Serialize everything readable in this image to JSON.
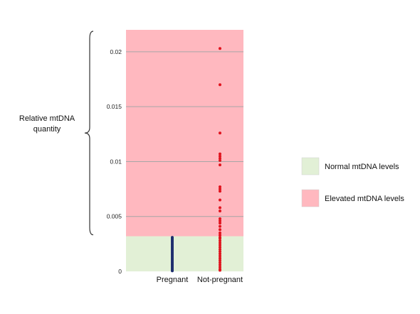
{
  "chart_data": {
    "type": "scatter",
    "ylim": [
      0,
      0.022
    ],
    "yticks": [
      0,
      0.005,
      0.01,
      0.015,
      0.02
    ],
    "ytick_labels": [
      "0",
      "0.005",
      "0.01",
      "0.015",
      "0.02"
    ],
    "categories": [
      "Pregnant",
      "Not-pregnant"
    ],
    "grid": true,
    "threshold": 0.0032,
    "bands": [
      {
        "name": "Normal mtDNA levels",
        "from": 0,
        "to": 0.0032,
        "color": "#e2f0d6"
      },
      {
        "name": "Elevated mtDNA levels",
        "from": 0.0032,
        "to": 0.022,
        "color": "#ffb8bf"
      }
    ],
    "series": [
      {
        "category": "Pregnant",
        "color": "#1f2f6e",
        "values": [
          0.0031,
          0.003,
          0.0029,
          0.0028,
          0.0027,
          0.0026,
          0.0025,
          0.0024,
          0.0023,
          0.0022,
          0.0021,
          0.002,
          0.0019,
          0.0018,
          0.0017,
          0.0016,
          0.0015,
          0.0014,
          0.0013,
          0.0012,
          0.0011,
          0.001,
          0.0009,
          0.0008,
          0.0007,
          0.0006,
          0.0005,
          0.0004,
          0.0003,
          0.0002,
          0.0001,
          5e-05
        ]
      },
      {
        "category": "Not-pregnant",
        "color": "#e0141e",
        "values": [
          0.0203,
          0.017,
          0.0126,
          0.0107,
          0.0105,
          0.0103,
          0.0101,
          0.0097,
          0.0077,
          0.0075,
          0.0073,
          0.0065,
          0.0058,
          0.0055,
          0.0048,
          0.0046,
          0.0044,
          0.0041,
          0.0038,
          0.0035,
          0.0033,
          0.0031,
          0.003,
          0.0028,
          0.0026,
          0.0024,
          0.0022,
          0.002,
          0.0018,
          0.0016,
          0.0014,
          0.0012,
          0.001,
          0.0008,
          0.0006,
          0.0004,
          0.0002,
          0.0001
        ]
      }
    ],
    "y_annotation": "Relative mtDNA\nquantity",
    "legend": {
      "placement": "right",
      "items": [
        {
          "label": "Normal mtDNA levels",
          "color": "#e2f0d6"
        },
        {
          "label": "Elevated mtDNA levels",
          "color": "#ffb8bf"
        }
      ]
    }
  }
}
